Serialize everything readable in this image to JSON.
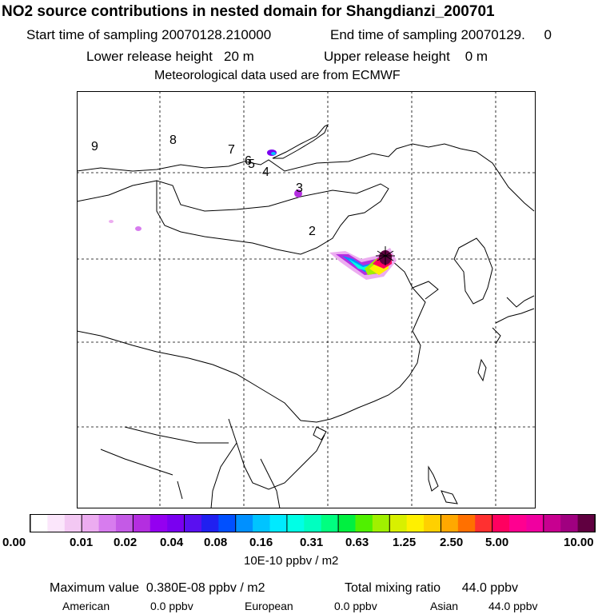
{
  "header": {
    "title": "NO2 source contributions in nested domain for Shangdianzi_200701",
    "start_label": "Start time of sampling 20070128.210000",
    "end_label": "End time of sampling 20070129.     0",
    "lower_release": "Lower release height   20 m",
    "upper_release": "Upper release height    0 m",
    "met_source": "Meteorological data used are from ECMWF"
  },
  "map": {
    "day_markers": [
      "9",
      "8",
      "7",
      "6",
      "5",
      "4",
      "3",
      "2"
    ],
    "receptor_symbol": "star"
  },
  "colorbar": {
    "colors": [
      "#ffffff",
      "#fbe6fb",
      "#f3c8f3",
      "#ecacf0",
      "#d77cee",
      "#c45ae6",
      "#b42ee0",
      "#9400f0",
      "#7a00f0",
      "#5a10f0",
      "#2020f0",
      "#0050ff",
      "#0090ff",
      "#00c4ff",
      "#00eaff",
      "#00ffe6",
      "#00ffc0",
      "#00ff80",
      "#00f040",
      "#50f000",
      "#a0f000",
      "#d8f000",
      "#fff000",
      "#ffd000",
      "#ffa800",
      "#ff7000",
      "#ff3030",
      "#ff0060",
      "#ff0090",
      "#f000a0",
      "#c80090",
      "#a00080",
      "#600040"
    ],
    "tick_labels": [
      "0.00",
      "0.01",
      "0.02",
      "0.04",
      "0.08",
      "0.16",
      "0.31",
      "0.63",
      "1.25",
      "2.50",
      "5.00",
      "10.00"
    ],
    "unit": "10E-10 ppbv / m2"
  },
  "footer": {
    "max_value": "Maximum value  0.380E-08 ppbv / m2",
    "total_mixing": "Total mixing ratio      44.0 ppbv",
    "american_label": "American",
    "american_value": "0.0 ppbv",
    "european_label": "European",
    "european_value": "0.0 ppbv",
    "asian_label": "Asian",
    "asian_value": "44.0 ppbv"
  }
}
